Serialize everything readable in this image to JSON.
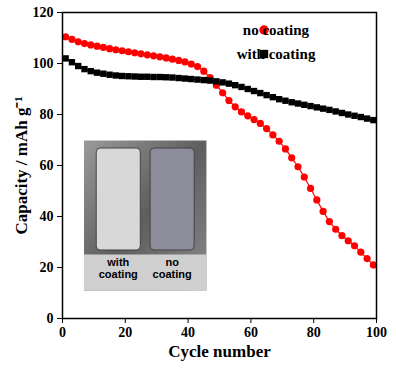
{
  "chart_data": {
    "type": "line",
    "x_label": "Cycle number",
    "y_label": "Capacity / mAh g⁻¹",
    "x": [
      1,
      3,
      5,
      7,
      9,
      11,
      13,
      15,
      17,
      19,
      21,
      23,
      25,
      27,
      29,
      31,
      33,
      35,
      37,
      39,
      41,
      43,
      45,
      47,
      49,
      51,
      53,
      55,
      57,
      59,
      61,
      63,
      65,
      67,
      69,
      71,
      73,
      75,
      77,
      79,
      81,
      83,
      85,
      87,
      89,
      91,
      93,
      95,
      97,
      99
    ],
    "series": [
      {
        "name": "no coating",
        "color": "#ff0000",
        "marker": "circle",
        "values": [
          110.5,
          109.5,
          108.5,
          107.8,
          107.3,
          106.8,
          106.3,
          105.8,
          105.4,
          105,
          104.6,
          104.2,
          103.8,
          103.4,
          103,
          102.6,
          102.2,
          101.7,
          101.2,
          100.6,
          99.8,
          98.8,
          97,
          94.5,
          91.5,
          88.5,
          85.5,
          83,
          81,
          79.5,
          78,
          76.5,
          74.5,
          72,
          69.5,
          66.5,
          63,
          59.5,
          55.5,
          51,
          46.5,
          42,
          38,
          35,
          32.5,
          30.5,
          28.5,
          26,
          23.5,
          21
        ]
      },
      {
        "name": "with coating",
        "color": "#000000",
        "marker": "square",
        "values": [
          102,
          100.5,
          99,
          97.8,
          97,
          96.4,
          96,
          95.6,
          95.3,
          95.1,
          95,
          94.9,
          94.8,
          94.8,
          94.7,
          94.7,
          94.6,
          94.5,
          94.3,
          94.1,
          93.9,
          93.7,
          93.5,
          93.3,
          93,
          92.6,
          92.1,
          91.5,
          90.8,
          90,
          89.2,
          88.4,
          87.6,
          86.8,
          86,
          85.4,
          84.8,
          84.3,
          83.8,
          83.3,
          82.8,
          82.3,
          81.8,
          81.2,
          80.6,
          80,
          79.5,
          79,
          78.4,
          77.8
        ]
      }
    ],
    "xlim": [
      0,
      100
    ],
    "xticks": [
      0,
      20,
      40,
      60,
      80,
      100
    ],
    "ylim": [
      0,
      120
    ],
    "yticks": [
      0,
      20,
      40,
      60,
      80,
      100,
      120
    ],
    "legend": "top-right",
    "annotations": [
      "with coating",
      "no coating"
    ]
  }
}
